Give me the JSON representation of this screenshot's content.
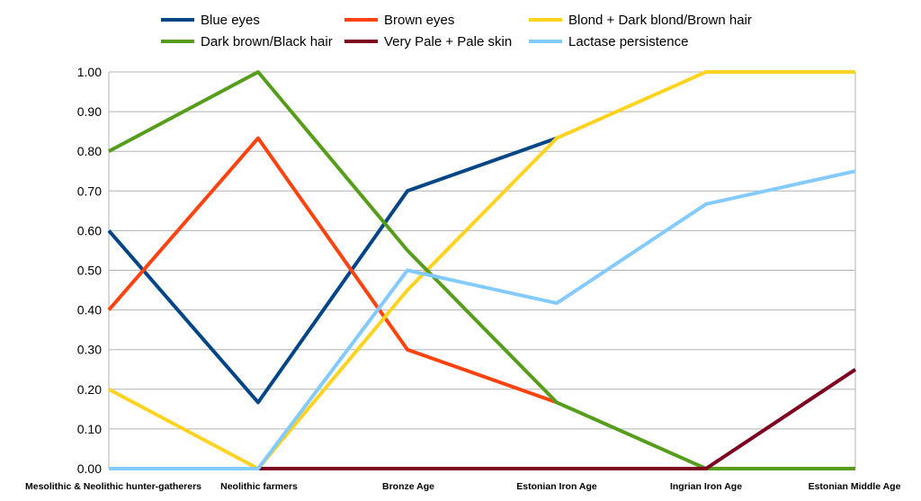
{
  "chart_data": {
    "type": "line",
    "title": "",
    "xlabel": "",
    "ylabel": "",
    "ylim": [
      0,
      1
    ],
    "yticks": [
      "0.00",
      "0.10",
      "0.20",
      "0.30",
      "0.40",
      "0.50",
      "0.60",
      "0.70",
      "0.80",
      "0.90",
      "1.00"
    ],
    "grid": true,
    "legend_position": "top",
    "categories": [
      "Mesolithic & Neolithic hunter-gatherers",
      "Neolithic farmers",
      "Bronze Age",
      "Estonian Iron Age",
      "Ingrian Iron Age",
      "Estonian Middle Age"
    ],
    "series": [
      {
        "name": "Blue eyes",
        "color": "#004586",
        "values": [
          0.6,
          0.167,
          0.7,
          0.833,
          null,
          null
        ]
      },
      {
        "name": "Brown eyes",
        "color": "#ff420e",
        "values": [
          0.4,
          0.833,
          0.3,
          0.167,
          null,
          null
        ]
      },
      {
        "name": "Blond + Dark blond/Brown hair",
        "color": "#ffd320",
        "values": [
          0.2,
          0.0,
          0.45,
          0.833,
          1.0,
          1.0
        ]
      },
      {
        "name": "Dark brown/Black hair",
        "color": "#579d1c",
        "values": [
          0.8,
          1.0,
          0.55,
          0.167,
          0.0,
          0.0
        ]
      },
      {
        "name": "Very Pale + Pale skin",
        "color": "#7e0021",
        "values": [
          null,
          0.0,
          0.0,
          0.0,
          0.0,
          0.25
        ]
      },
      {
        "name": "Lactase persistence",
        "color": "#83caff",
        "values": [
          0.0,
          0.0,
          0.5,
          0.417,
          0.667,
          0.75
        ]
      }
    ]
  }
}
